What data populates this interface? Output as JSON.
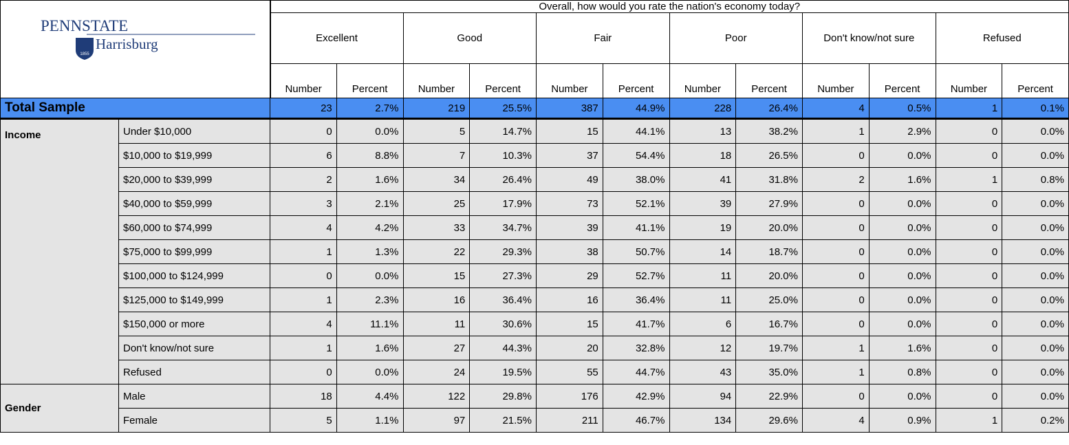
{
  "header": {
    "logo": {
      "name": "PENNSTATE",
      "campus": "Harrisburg",
      "year": "1855"
    },
    "question": "Overall, how would you rate the nation's economy today?",
    "categories": [
      "Excellent",
      "Good",
      "Fair",
      "Poor",
      "Don't know/not sure",
      "Refused"
    ],
    "subheaders": [
      "Number",
      "Percent"
    ]
  },
  "total": {
    "label": "Total Sample",
    "values": [
      23,
      "2.7%",
      219,
      "25.5%",
      387,
      "44.9%",
      228,
      "26.4%",
      4,
      "0.5%",
      1,
      "0.1%"
    ]
  },
  "groups": [
    {
      "label": "Income",
      "rows": [
        {
          "label": "Under $10,000",
          "values": [
            0,
            "0.0%",
            5,
            "14.7%",
            15,
            "44.1%",
            13,
            "38.2%",
            1,
            "2.9%",
            0,
            "0.0%"
          ]
        },
        {
          "label": "$10,000 to $19,999",
          "values": [
            6,
            "8.8%",
            7,
            "10.3%",
            37,
            "54.4%",
            18,
            "26.5%",
            0,
            "0.0%",
            0,
            "0.0%"
          ]
        },
        {
          "label": "$20,000 to $39,999",
          "values": [
            2,
            "1.6%",
            34,
            "26.4%",
            49,
            "38.0%",
            41,
            "31.8%",
            2,
            "1.6%",
            1,
            "0.8%"
          ]
        },
        {
          "label": "$40,000 to $59,999",
          "values": [
            3,
            "2.1%",
            25,
            "17.9%",
            73,
            "52.1%",
            39,
            "27.9%",
            0,
            "0.0%",
            0,
            "0.0%"
          ]
        },
        {
          "label": "$60,000 to $74,999",
          "values": [
            4,
            "4.2%",
            33,
            "34.7%",
            39,
            "41.1%",
            19,
            "20.0%",
            0,
            "0.0%",
            0,
            "0.0%"
          ]
        },
        {
          "label": "$75,000 to $99,999",
          "values": [
            1,
            "1.3%",
            22,
            "29.3%",
            38,
            "50.7%",
            14,
            "18.7%",
            0,
            "0.0%",
            0,
            "0.0%"
          ]
        },
        {
          "label": "$100,000 to $124,999",
          "values": [
            0,
            "0.0%",
            15,
            "27.3%",
            29,
            "52.7%",
            11,
            "20.0%",
            0,
            "0.0%",
            0,
            "0.0%"
          ]
        },
        {
          "label": "$125,000 to $149,999",
          "values": [
            1,
            "2.3%",
            16,
            "36.4%",
            16,
            "36.4%",
            11,
            "25.0%",
            0,
            "0.0%",
            0,
            "0.0%"
          ]
        },
        {
          "label": "$150,000 or more",
          "values": [
            4,
            "11.1%",
            11,
            "30.6%",
            15,
            "41.7%",
            6,
            "16.7%",
            0,
            "0.0%",
            0,
            "0.0%"
          ]
        },
        {
          "label": "Don't know/not sure",
          "values": [
            1,
            "1.6%",
            27,
            "44.3%",
            20,
            "32.8%",
            12,
            "19.7%",
            1,
            "1.6%",
            0,
            "0.0%"
          ]
        },
        {
          "label": "Refused",
          "values": [
            0,
            "0.0%",
            24,
            "19.5%",
            55,
            "44.7%",
            43,
            "35.0%",
            1,
            "0.8%",
            0,
            "0.0%"
          ]
        }
      ]
    },
    {
      "label": "Gender",
      "rows": [
        {
          "label": "Male",
          "values": [
            18,
            "4.4%",
            122,
            "29.8%",
            176,
            "42.9%",
            94,
            "22.9%",
            0,
            "0.0%",
            0,
            "0.0%"
          ]
        },
        {
          "label": "Female",
          "values": [
            5,
            "1.1%",
            97,
            "21.5%",
            211,
            "46.7%",
            134,
            "29.6%",
            4,
            "0.9%",
            1,
            "0.2%"
          ]
        }
      ]
    }
  ]
}
